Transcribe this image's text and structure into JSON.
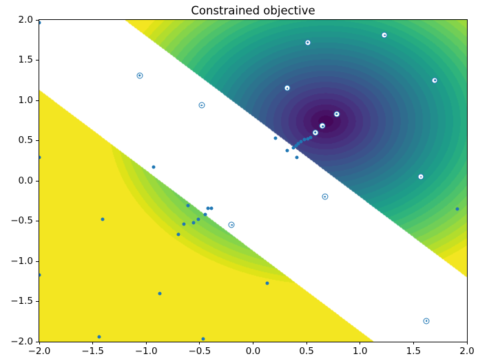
{
  "figure": {
    "title": "Constrained objective",
    "background_color": "#ffffff"
  },
  "chart_data": {
    "type": "contour",
    "title": "Constrained objective",
    "xlabel": "",
    "ylabel": "",
    "xlim": [
      -2.0,
      2.0
    ],
    "ylim": [
      -2.0,
      2.0
    ],
    "grid": false,
    "legend": "none",
    "xtick_values": [
      -2.0,
      -1.5,
      -1.0,
      -0.5,
      0.0,
      0.5,
      1.0,
      1.5,
      2.0
    ],
    "xtick_labels": [
      "−2.0",
      "−1.5",
      "−1.0",
      "−0.5",
      "0.0",
      "0.5",
      "1.0",
      "1.5",
      "2.0"
    ],
    "ytick_values": [
      2.0,
      1.5,
      1.0,
      0.5,
      0.0,
      -0.5,
      -1.0,
      -1.5,
      -2.0
    ],
    "ytick_labels": [
      "2.0",
      "1.5",
      "1.0",
      "0.5",
      "0.0",
      "−0.5",
      "−1.0",
      "−1.5",
      "−2.0"
    ],
    "colormap": "viridis",
    "objective": {
      "description": "radially increasing objective, minimum (dark purple) at center, clipped to flat yellow far from center",
      "center_x": 0.68,
      "center_y": 0.74,
      "radius_max": 2.1,
      "n_levels": 30
    },
    "constraint_band": {
      "description": "infeasible diagonal band masked white",
      "expression": "x + y",
      "lower": -0.87,
      "upper": 0.8,
      "color": "#ffffff"
    },
    "series": [
      {
        "name": "evaluated-points",
        "marker": "open-circle",
        "color": "#1f77b4",
        "points": [
          [
            0.51,
            1.72
          ],
          [
            1.23,
            1.81
          ],
          [
            1.7,
            1.25
          ],
          [
            0.32,
            1.15
          ],
          [
            -1.06,
            1.31
          ],
          [
            -0.48,
            0.94
          ],
          [
            0.78,
            0.83
          ],
          [
            0.65,
            0.68
          ],
          [
            0.58,
            0.6
          ],
          [
            1.57,
            0.05
          ],
          [
            0.67,
            -0.2
          ],
          [
            -0.2,
            -0.55
          ],
          [
            1.62,
            -1.74
          ]
        ]
      },
      {
        "name": "sample-dots",
        "marker": "dot",
        "color": "#1f77b4",
        "points": [
          [
            -2.0,
            1.97
          ],
          [
            -2.0,
            0.29
          ],
          [
            -2.0,
            -1.17
          ],
          [
            -0.93,
            0.17
          ],
          [
            -1.41,
            -0.48
          ],
          [
            -0.61,
            -0.31
          ],
          [
            -0.42,
            -0.34
          ],
          [
            -0.39,
            -0.34
          ],
          [
            -0.45,
            -0.42
          ],
          [
            -0.51,
            -0.48
          ],
          [
            -0.56,
            -0.52
          ],
          [
            -0.65,
            -0.54
          ],
          [
            -0.7,
            -0.67
          ],
          [
            -0.87,
            -1.4
          ],
          [
            -1.44,
            -1.94
          ],
          [
            -0.47,
            -1.97
          ],
          [
            0.13,
            -1.27
          ],
          [
            1.91,
            -0.35
          ],
          [
            0.21,
            0.53
          ],
          [
            0.32,
            0.38
          ],
          [
            0.41,
            0.29
          ],
          [
            0.38,
            0.41
          ],
          [
            0.4,
            0.44
          ],
          [
            0.42,
            0.46
          ],
          [
            0.45,
            0.49
          ],
          [
            0.48,
            0.51
          ],
          [
            0.51,
            0.52
          ],
          [
            0.54,
            0.54
          ]
        ]
      }
    ]
  }
}
